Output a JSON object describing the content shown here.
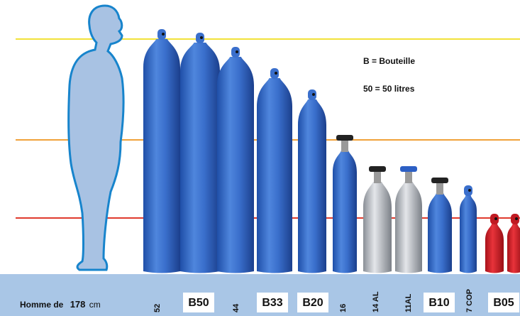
{
  "legend": [
    "B = Bouteille",
    "50 = 50 litres"
  ],
  "person": {
    "prefix": "Homme de",
    "height": "178",
    "unit": "cm"
  },
  "bottom_labels": [
    "52",
    "B50",
    "44",
    "B33",
    "B20",
    "16",
    "14 AL",
    "11AL",
    "B10",
    "7 COP",
    "B05"
  ]
}
